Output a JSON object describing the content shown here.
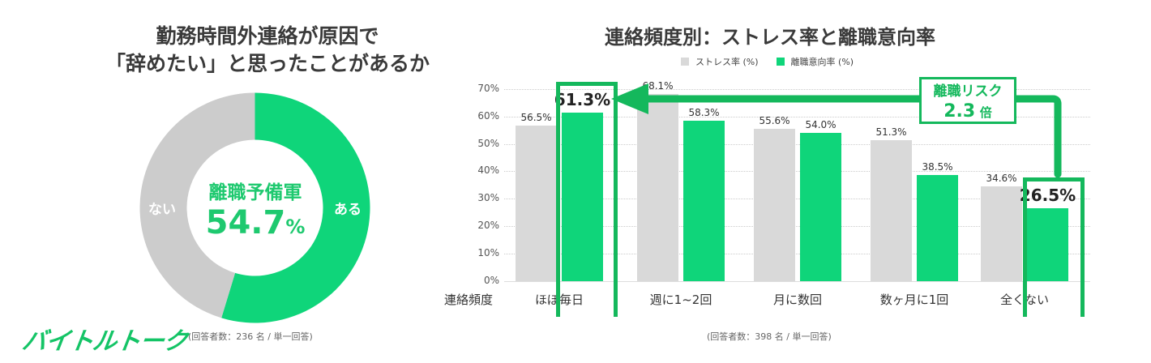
{
  "left_panel": {
    "title_line1": "勤務時間外連絡が原因で",
    "title_line2": "「辞めたい」と思ったことがあるか",
    "donut": {
      "center_label": "離職予備軍",
      "center_value": "54.7",
      "center_unit": "%",
      "segments": [
        {
          "label": "ある",
          "value": 54.7,
          "color": "#0fd57a"
        },
        {
          "label": "ない",
          "value": 45.3,
          "color": "#cccccc"
        }
      ]
    },
    "note": "(回答者数：236 名 / 単一回答)"
  },
  "logo": {
    "text": "バイトルトーク",
    "color": "#14c466"
  },
  "right_panel": {
    "title": "連絡頻度別：ストレス率と離職意向率",
    "legend": [
      {
        "label": "ストレス率 (%)",
        "color": "#d9d9d9"
      },
      {
        "label": "離職意向率 (%)",
        "color": "#0fd57a"
      }
    ],
    "axis_title": "連絡頻度",
    "y_ticks": [
      "0%",
      "10%",
      "20%",
      "30%",
      "40%",
      "50%",
      "60%",
      "70%"
    ],
    "callout": {
      "line1": "離職リスク",
      "line2_value": "2.3",
      "line2_unit": "倍"
    },
    "note": "(回答者数：398 名 / 単一回答)",
    "value_labels": {
      "stress": [
        "56.5%",
        "68.1%",
        "55.6%",
        "51.3%",
        "34.6%"
      ],
      "turnover": [
        "61.3%",
        "58.3%",
        "54.0%",
        "38.5%",
        "26.5%"
      ]
    }
  },
  "chart_data": [
    {
      "type": "pie",
      "title": "勤務時間外連絡が原因で「辞めたい」と思ったことがあるか",
      "categories": [
        "ある",
        "ない"
      ],
      "values": [
        54.7,
        45.3
      ],
      "center_text": "離職予備軍 54.7%",
      "note": "(回答者数：236 名 / 単一回答)"
    },
    {
      "type": "bar",
      "title": "連絡頻度別：ストレス率と離職意向率",
      "xlabel": "連絡頻度",
      "ylabel": "",
      "categories": [
        "ほぼ毎日",
        "週に1~2回",
        "月に数回",
        "数ヶ月に1回",
        "全くない"
      ],
      "series": [
        {
          "name": "ストレス率 (%)",
          "values": [
            56.5,
            68.1,
            55.6,
            51.3,
            34.6
          ],
          "color": "#d9d9d9"
        },
        {
          "name": "離職意向率 (%)",
          "values": [
            61.3,
            58.3,
            54.0,
            38.5,
            26.5
          ],
          "color": "#0fd57a"
        }
      ],
      "ylim": [
        0,
        70
      ],
      "yticks": [
        0,
        10,
        20,
        30,
        40,
        50,
        60,
        70
      ],
      "grid": true,
      "legend_position": "top",
      "annotations": [
        "離職リスク 2.3 倍 (全くない 26.5% → ほぼ毎日 61.3%)"
      ],
      "note": "(回答者数：398 名 / 単一回答)"
    }
  ]
}
